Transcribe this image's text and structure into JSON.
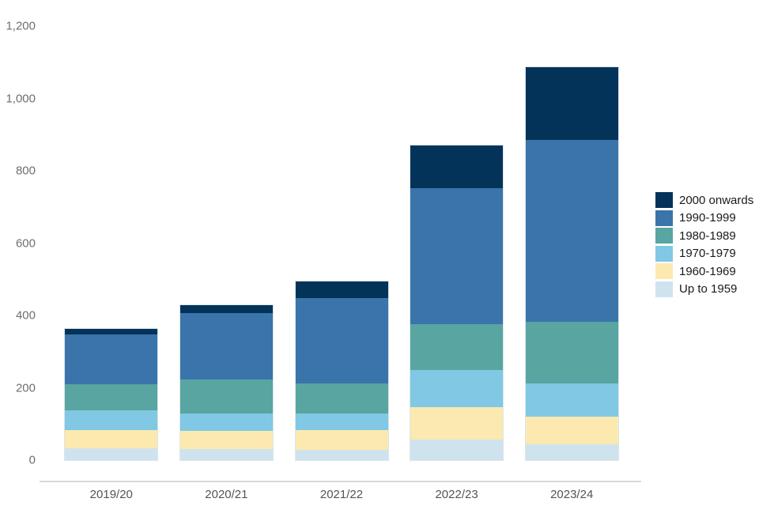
{
  "chart_data": {
    "type": "bar",
    "stacked": true,
    "title": "",
    "xlabel": "",
    "ylabel": "",
    "grid": false,
    "legend_position": "right",
    "ylim": [
      0,
      1200
    ],
    "categories": [
      "2019/20",
      "2020/21",
      "2021/22",
      "2022/23",
      "2023/24"
    ],
    "series": [
      {
        "name": "Up to 1959",
        "color": "#cfe3ee",
        "values": [
          32,
          30,
          28,
          56,
          43
        ]
      },
      {
        "name": "1960-1969",
        "color": "#fce9b0",
        "values": [
          51,
          50,
          54,
          90,
          77
        ]
      },
      {
        "name": "1970-1979",
        "color": "#80c8e3",
        "values": [
          55,
          50,
          48,
          104,
          91
        ]
      },
      {
        "name": "1980-1989",
        "color": "#58a5a1",
        "values": [
          72,
          92,
          83,
          127,
          171
        ]
      },
      {
        "name": "1990-1999",
        "color": "#3a74ab",
        "values": [
          137,
          184,
          234,
          374,
          504
        ]
      },
      {
        "name": "2000 onwards",
        "color": "#043359",
        "values": [
          15,
          22,
          48,
          119,
          200
        ]
      }
    ],
    "totals": [
      362,
      428,
      495,
      870,
      1086
    ],
    "y_ticks": [
      {
        "value": 0,
        "label": "0"
      },
      {
        "value": 200,
        "label": "200"
      },
      {
        "value": 400,
        "label": "400"
      },
      {
        "value": 600,
        "label": "600"
      },
      {
        "value": 800,
        "label": "800"
      },
      {
        "value": 1000,
        "label": "1,000"
      },
      {
        "value": 1200,
        "label": "1,200"
      }
    ],
    "legend_order_top_to_bottom": [
      "2000 onwards",
      "1990-1999",
      "1980-1989",
      "1970-1979",
      "1960-1969",
      "Up to 1959"
    ],
    "colors": {
      "axis_line": "#d9d9d9",
      "y_tick_text": "#6e6e6e",
      "x_label_text": "#545454",
      "legend_text": "#1a1a1a",
      "background": "#ffffff"
    }
  }
}
